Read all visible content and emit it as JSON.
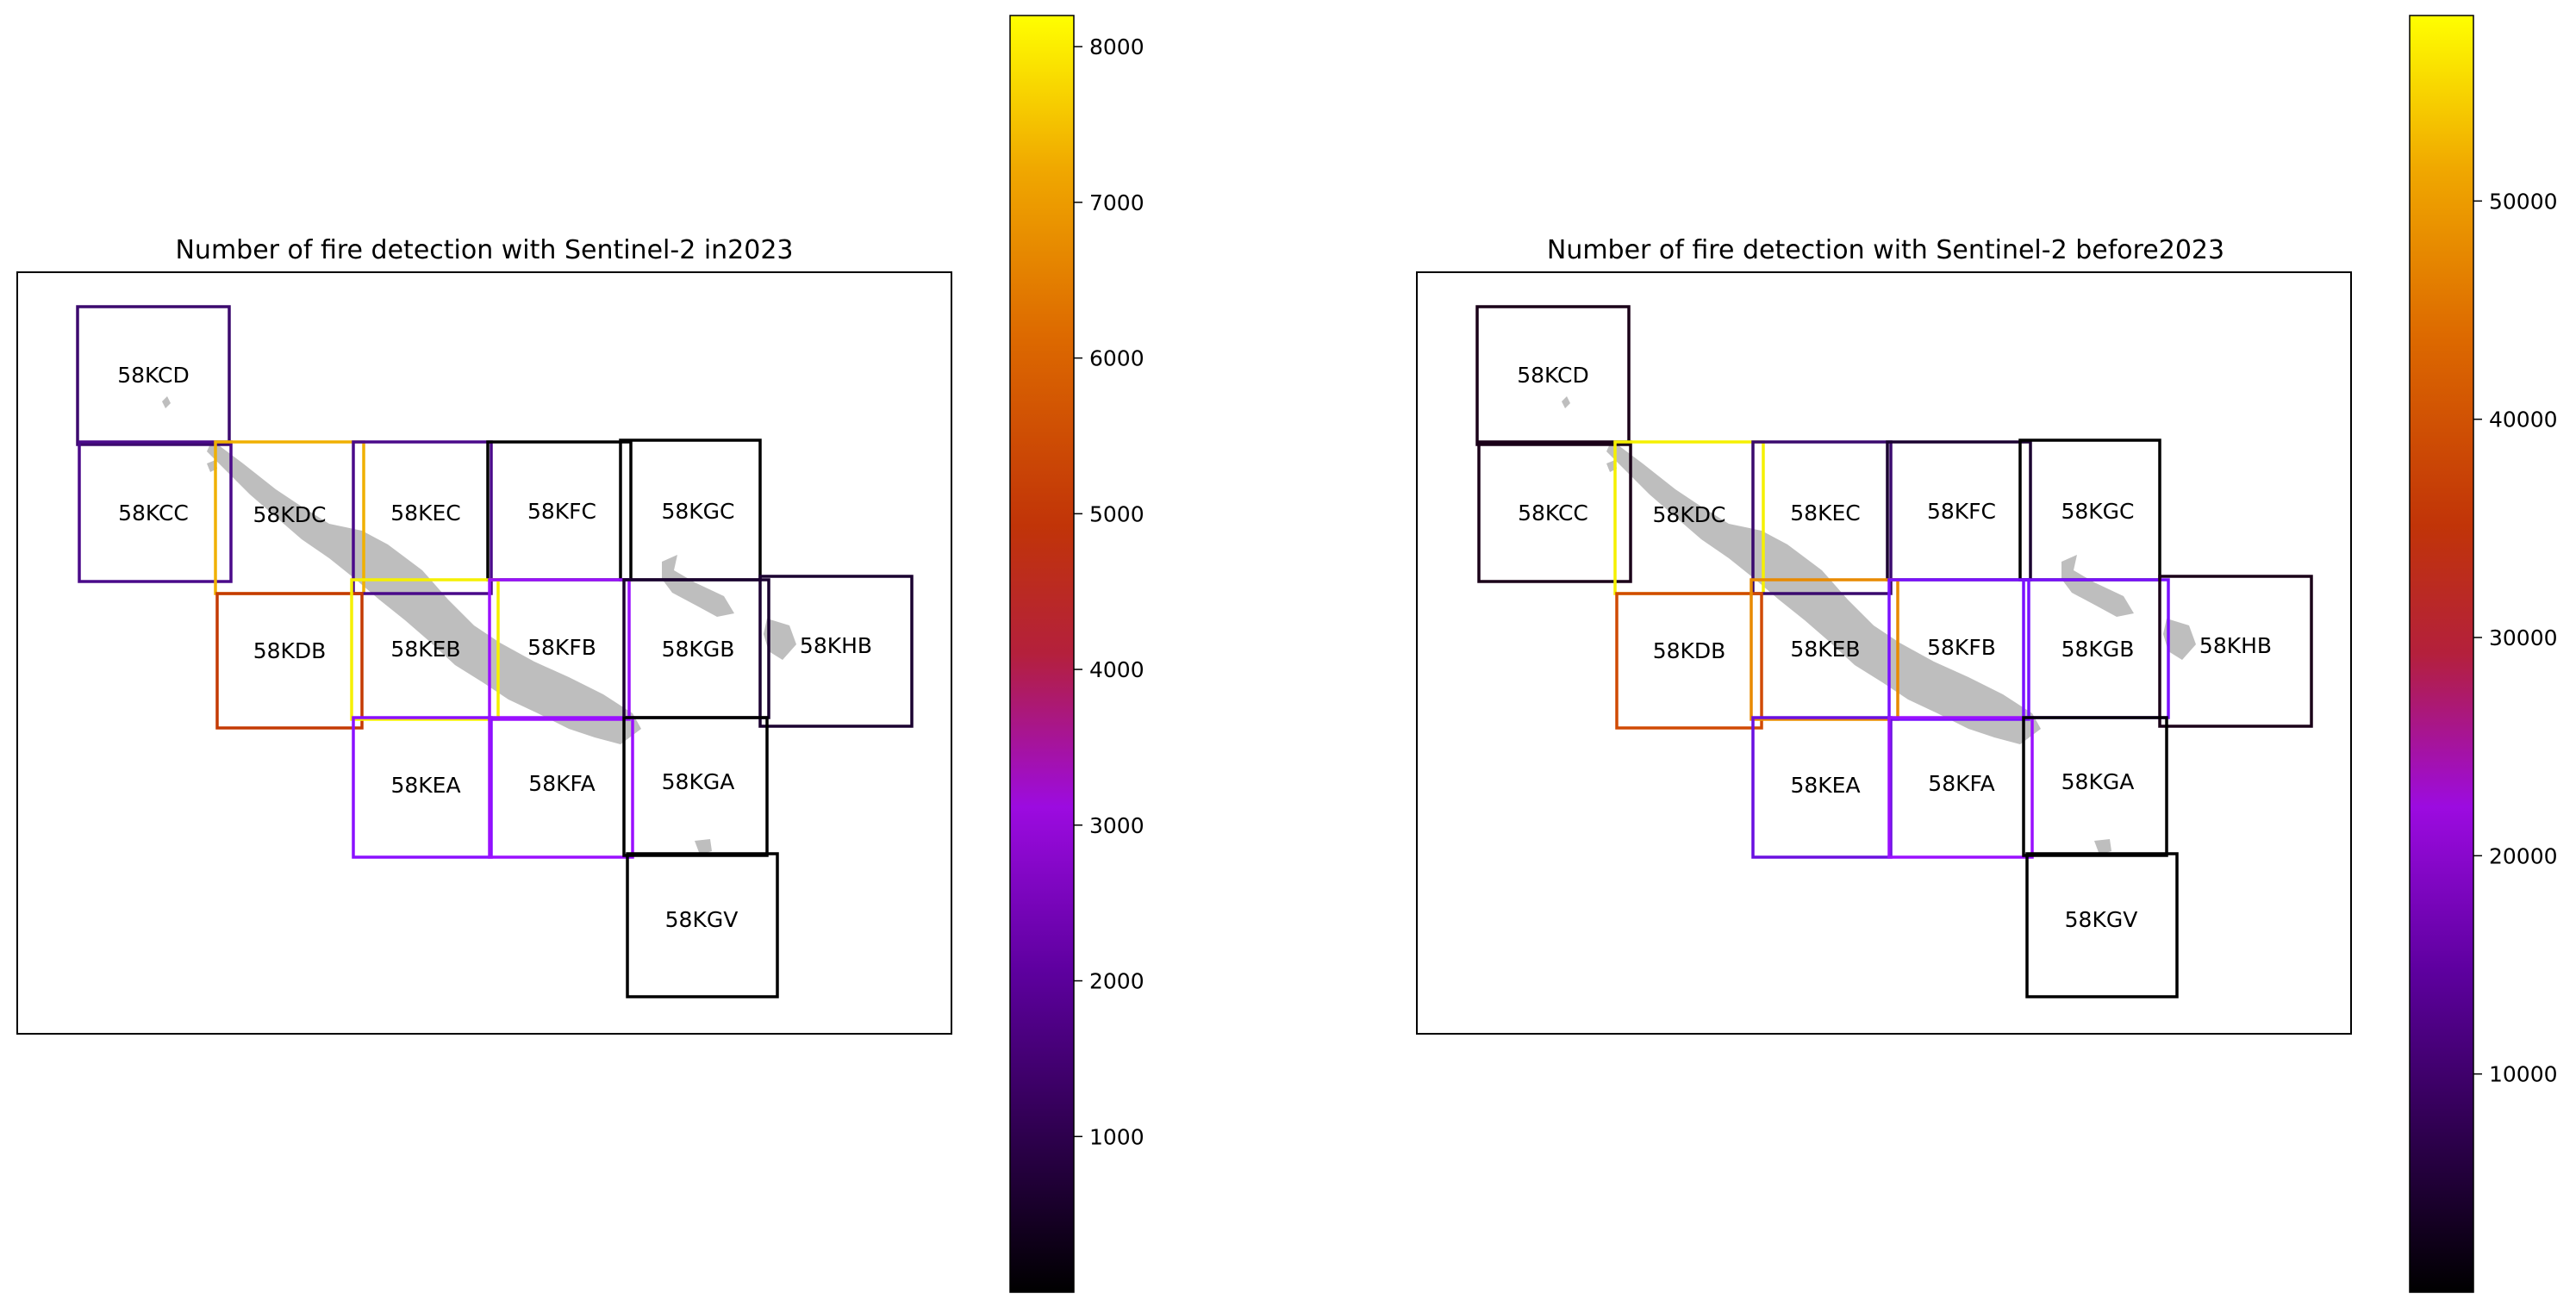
{
  "colormap": {
    "name": "gnuplot",
    "stops": [
      {
        "t": 0.0,
        "color": "#000000"
      },
      {
        "t": 0.25,
        "color": "#5d009e"
      },
      {
        "t": 0.38,
        "color": "#9c0be0"
      },
      {
        "t": 0.5,
        "color": "#b4203c"
      },
      {
        "t": 0.6,
        "color": "#c13408"
      },
      {
        "t": 0.75,
        "color": "#dd6a00"
      },
      {
        "t": 0.88,
        "color": "#f0a800"
      },
      {
        "t": 1.0,
        "color": "#ffff00"
      }
    ]
  },
  "island_color": "#bebebe",
  "panels": [
    {
      "title": "Number of fire detection with Sentinel-2 in2023",
      "colorbar": {
        "min": 0,
        "max": 8200,
        "ticks": [
          1000,
          2000,
          3000,
          4000,
          5000,
          6000,
          7000,
          8000
        ]
      },
      "tiles": [
        {
          "label": "58KCD",
          "color": "#3c0a6e"
        },
        {
          "label": "58KCC",
          "color": "#4a0a8a"
        },
        {
          "label": "58KDC",
          "color": "#f0b000"
        },
        {
          "label": "58KEC",
          "color": "#4a0a8a"
        },
        {
          "label": "58KFC",
          "color": "#000000"
        },
        {
          "label": "58KGC",
          "color": "#000000"
        },
        {
          "label": "58KDB",
          "color": "#c43a04"
        },
        {
          "label": "58KEB",
          "color": "#f5f000"
        },
        {
          "label": "58KFB",
          "color": "#9a10ff"
        },
        {
          "label": "58KGB",
          "color": "#1a0030"
        },
        {
          "label": "58KHB",
          "color": "#1a0030"
        },
        {
          "label": "58KEA",
          "color": "#8a10ff"
        },
        {
          "label": "58KFA",
          "color": "#9a10ff"
        },
        {
          "label": "58KGA",
          "color": "#000000"
        },
        {
          "label": "58KGV",
          "color": "#000000"
        }
      ]
    },
    {
      "title": "Number of fire detection with Sentinel-2 before2023",
      "colorbar": {
        "min": 0,
        "max": 58500,
        "ticks": [
          10000,
          20000,
          30000,
          40000,
          50000
        ]
      },
      "tiles": [
        {
          "label": "58KCD",
          "color": "#1a0018"
        },
        {
          "label": "58KCC",
          "color": "#1a0018"
        },
        {
          "label": "58KDC",
          "color": "#f5f000"
        },
        {
          "label": "58KEC",
          "color": "#3a0a6e"
        },
        {
          "label": "58KFC",
          "color": "#1a0030"
        },
        {
          "label": "58KGC",
          "color": "#000000"
        },
        {
          "label": "58KDB",
          "color": "#d04a04"
        },
        {
          "label": "58KEB",
          "color": "#e88a00"
        },
        {
          "label": "58KFB",
          "color": "#7a10ff"
        },
        {
          "label": "58KGB",
          "color": "#7a10ff"
        },
        {
          "label": "58KHB",
          "color": "#1a0018"
        },
        {
          "label": "58KEA",
          "color": "#6a10e0"
        },
        {
          "label": "58KFA",
          "color": "#9a10ff"
        },
        {
          "label": "58KGA",
          "color": "#000000"
        },
        {
          "label": "58KGV",
          "color": "#000000"
        }
      ]
    }
  ]
}
